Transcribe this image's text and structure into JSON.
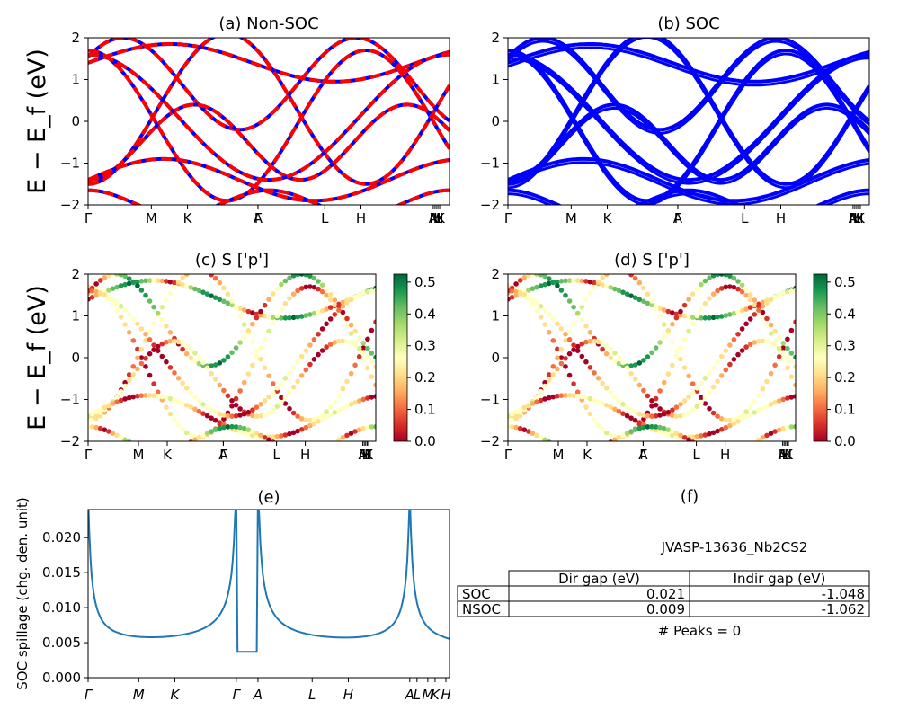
{
  "chart_data": [
    {
      "id": "a",
      "type": "line",
      "title": "(a) Non-SOC",
      "ylim": [
        -2,
        2
      ],
      "yticks": [
        "2",
        "1",
        "0",
        "−1",
        "−2"
      ],
      "kpoint_labels": [
        "Γ",
        "M",
        "K",
        "Γ",
        "A",
        "L",
        "H",
        "A",
        "M",
        "L",
        "H",
        "K"
      ],
      "style": "red-blue-dashed"
    },
    {
      "id": "b",
      "type": "line",
      "title": "(b) SOC",
      "ylim": [
        -2,
        2
      ],
      "yticks": [
        "2",
        "1",
        "0",
        "−1",
        "−2"
      ],
      "kpoint_labels": [
        "Γ",
        "M",
        "K",
        "Γ",
        "A",
        "L",
        "H",
        "A",
        "M",
        "L",
        "H",
        "K"
      ],
      "style": "blue"
    },
    {
      "id": "c",
      "type": "scatter",
      "title": "(c)  S ['p']",
      "ylim": [
        -2,
        2
      ],
      "yticks": [
        "2",
        "1",
        "0",
        "−1",
        "−2"
      ],
      "kpoint_labels": [
        "Γ",
        "M",
        "K",
        "Γ",
        "A",
        "L",
        "H",
        "A",
        "M",
        "L",
        "H",
        "K"
      ],
      "colorbar": {
        "min": 0.0,
        "max": 0.5,
        "ticks": [
          "0.5",
          "0.4",
          "0.3",
          "0.2",
          "0.1",
          "0.0"
        ]
      }
    },
    {
      "id": "d",
      "type": "scatter",
      "title": "(d) S ['p']",
      "ylim": [
        -2,
        2
      ],
      "yticks": [
        "2",
        "1",
        "0",
        "−1",
        "−2"
      ],
      "kpoint_labels": [
        "Γ",
        "M",
        "K",
        "Γ",
        "A",
        "L",
        "H",
        "A",
        "M",
        "L",
        "H",
        "K"
      ],
      "colorbar": {
        "min": 0.0,
        "max": 0.5,
        "ticks": [
          "0.5",
          "0.4",
          "0.3",
          "0.2",
          "0.1",
          "0.0"
        ]
      }
    },
    {
      "id": "e",
      "type": "line",
      "title": "(e)",
      "ylabel": "SOC spillage (chg. den. unit)",
      "ylim": [
        0,
        0.024
      ],
      "yticks": [
        "0.000",
        "0.005",
        "0.010",
        "0.015",
        "0.020"
      ],
      "kpoint_labels": [
        "Γ",
        "M",
        "K",
        "Γ",
        "A",
        "L",
        "H",
        "A",
        "L",
        "M",
        "K",
        "H"
      ],
      "peaks_near_x": [
        "Γ",
        "A",
        "A"
      ],
      "baseline_value": 0.0032,
      "peak_value": 0.024
    },
    {
      "id": "f",
      "type": "table",
      "title": "(f)",
      "subtitle": "JVASP-13636_Nb2CS2",
      "columns": [
        "Dir gap (eV)",
        "Indir gap (eV)"
      ],
      "rows": [
        {
          "label": "SOC",
          "dir_gap": "0.021",
          "indir_gap": "-1.048"
        },
        {
          "label": "NSOC",
          "dir_gap": "0.009",
          "indir_gap": "-1.062"
        }
      ],
      "footer": "# Peaks = 0"
    }
  ],
  "shared_ylabel": "E − E_f (eV)",
  "colors": {
    "nsoc_red": "#ff0000",
    "soc_blue": "#0000ff",
    "spillage_line": "#1f77b4"
  }
}
